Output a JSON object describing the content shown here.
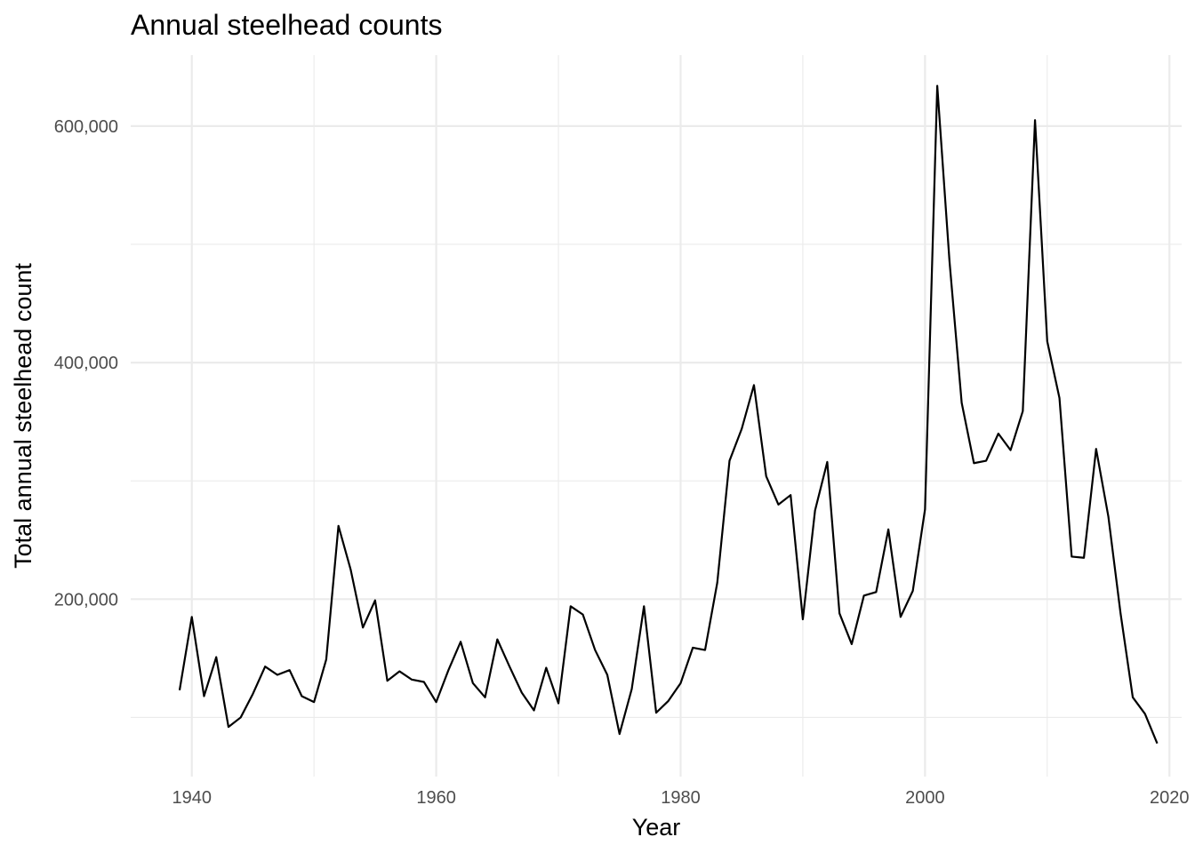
{
  "chart_data": {
    "type": "line",
    "title": "Annual steelhead counts",
    "xlabel": "Year",
    "ylabel": "Total annual steelhead count",
    "xlim": [
      1935,
      2021
    ],
    "ylim": [
      50000,
      660000
    ],
    "x_ticks": [
      1940,
      1960,
      1980,
      2000,
      2020
    ],
    "x_tick_labels": [
      "1940",
      "1960",
      "1980",
      "2000",
      "2020"
    ],
    "x_minor_ticks": [
      1950,
      1970,
      1990,
      2010
    ],
    "y_ticks": [
      200000,
      400000,
      600000
    ],
    "y_tick_labels": [
      "200,000",
      "400,000",
      "600,000"
    ],
    "y_minor_ticks": [
      100000,
      300000,
      500000
    ],
    "grid": true,
    "line_color": "#000000",
    "grid_color": "#ebebeb",
    "series": [
      {
        "x": [
          1939,
          1940,
          1941,
          1942,
          1943,
          1944,
          1945,
          1946,
          1947,
          1948,
          1949,
          1950,
          1951,
          1952,
          1953,
          1954,
          1955,
          1956,
          1957,
          1958,
          1959,
          1960,
          1961,
          1962,
          1963,
          1964,
          1965,
          1966,
          1967,
          1968,
          1969,
          1970,
          1971,
          1972,
          1973,
          1974,
          1975,
          1976,
          1977,
          1978,
          1979,
          1980,
          1981,
          1982,
          1983,
          1984,
          1985,
          1986,
          1987,
          1988,
          1989,
          1990,
          1991,
          1992,
          1993,
          1994,
          1995,
          1996,
          1997,
          1998,
          1999,
          2000,
          2001,
          2002,
          2003,
          2004,
          2005,
          2006,
          2007,
          2008,
          2009,
          2010,
          2011,
          2012,
          2013,
          2014,
          2015,
          2016,
          2017,
          2018,
          2019
        ],
        "values": [
          123000,
          185000,
          118000,
          151000,
          92000,
          100000,
          120000,
          143000,
          136000,
          140000,
          118000,
          113000,
          149000,
          262000,
          225000,
          176000,
          199000,
          131000,
          139000,
          132000,
          130000,
          113000,
          140000,
          164000,
          129000,
          117000,
          166000,
          143000,
          121000,
          106000,
          142000,
          112000,
          194000,
          187000,
          157000,
          136000,
          86000,
          124000,
          194000,
          104000,
          114000,
          129000,
          159000,
          157000,
          214000,
          317000,
          344000,
          381000,
          304000,
          280000,
          288000,
          183000,
          275000,
          316000,
          188000,
          162000,
          203000,
          206000,
          259000,
          185000,
          207000,
          276000,
          634000,
          486000,
          366000,
          315000,
          317000,
          340000,
          326000,
          359000,
          605000,
          418000,
          370000,
          236000,
          235000,
          327000,
          270000,
          188000,
          117000,
          103000,
          78000
        ]
      }
    ]
  }
}
